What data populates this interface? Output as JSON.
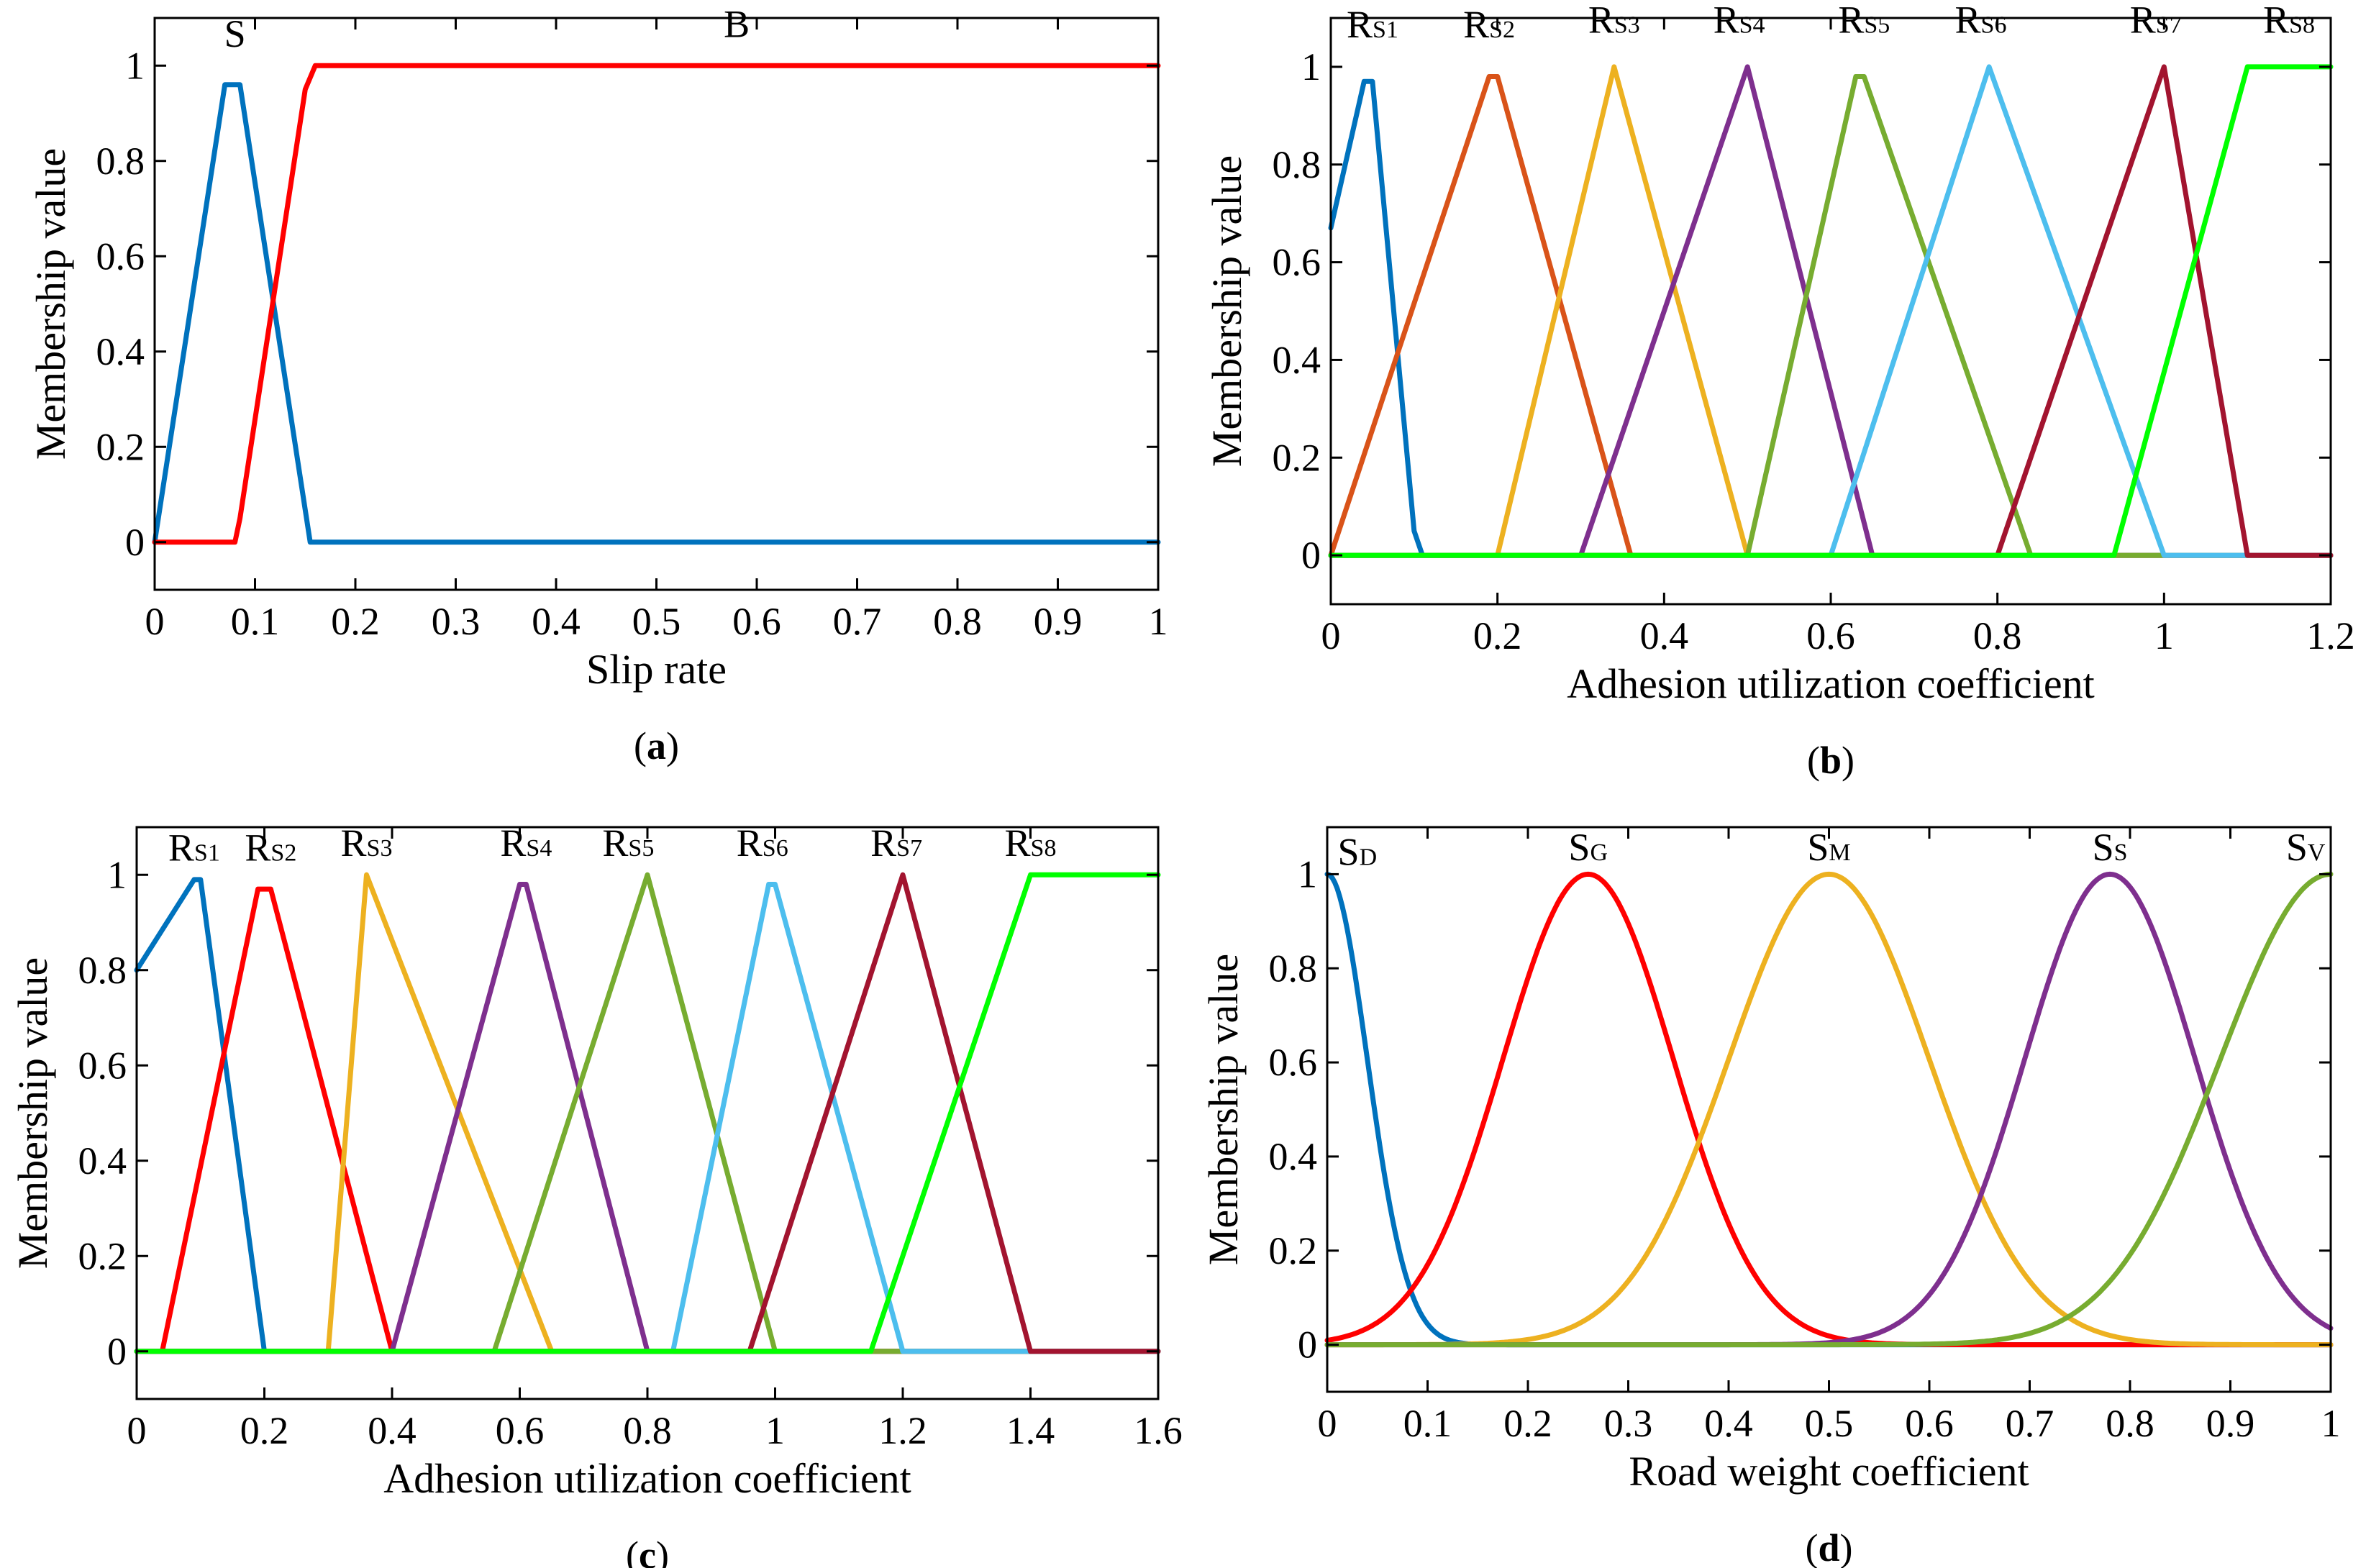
{
  "colors": {
    "blue": "#0072bd",
    "orange": "#d95319",
    "yellow": "#edb120",
    "purple": "#7e2f8e",
    "green": "#77ac30",
    "cyan": "#4dbeee",
    "maroon": "#a2142f",
    "red": "#ff0000",
    "lime": "#00ff00"
  },
  "chart_data": [
    {
      "id": "a",
      "type": "line",
      "title": "",
      "caption": {
        "open": "(",
        "letter": "a",
        "close": ")"
      },
      "xlabel": "Slip rate",
      "ylabel": "Membership value",
      "xlim": [
        0,
        1
      ],
      "ylim": [
        -0.1,
        1.1
      ],
      "xticks": [
        {
          "v": 0,
          "t": "0"
        },
        {
          "v": 0.1,
          "t": "0.1"
        },
        {
          "v": 0.2,
          "t": "0.2"
        },
        {
          "v": 0.3,
          "t": "0.3"
        },
        {
          "v": 0.4,
          "t": "0.4"
        },
        {
          "v": 0.5,
          "t": "0.5"
        },
        {
          "v": 0.6,
          "t": "0.6"
        },
        {
          "v": 0.7,
          "t": "0.7"
        },
        {
          "v": 0.8,
          "t": "0.8"
        },
        {
          "v": 0.9,
          "t": "0.9"
        },
        {
          "v": 1,
          "t": "1"
        }
      ],
      "yticks": [
        {
          "v": 0,
          "t": "0"
        },
        {
          "v": 0.2,
          "t": "0.2"
        },
        {
          "v": 0.4,
          "t": "0.4"
        },
        {
          "v": 0.6,
          "t": "0.6"
        },
        {
          "v": 0.8,
          "t": "0.8"
        },
        {
          "v": 1,
          "t": "1"
        }
      ],
      "series": [
        {
          "name": "S",
          "sub": "",
          "color": "blue",
          "x": [
            0,
            0.07,
            0.085,
            0.155,
            1
          ],
          "y": [
            0,
            0.96,
            0.96,
            0,
            0
          ],
          "label_at": [
            0.08,
            1.04
          ]
        },
        {
          "name": "B",
          "sub": "",
          "color": "red",
          "x": [
            0,
            0.08,
            0.085,
            0.15,
            0.16,
            1
          ],
          "y": [
            0,
            0,
            0.05,
            0.95,
            1,
            1
          ],
          "label_at": [
            0.58,
            1.06
          ]
        }
      ]
    },
    {
      "id": "b",
      "type": "line",
      "title": "",
      "caption": {
        "open": "(",
        "letter": "b",
        "close": ")"
      },
      "xlabel": "Adhesion utilization coefficient",
      "ylabel": "Membership value",
      "xlim": [
        0,
        1.2
      ],
      "ylim": [
        -0.1,
        1.1
      ],
      "xticks": [
        {
          "v": 0,
          "t": "0"
        },
        {
          "v": 0.2,
          "t": "0.2"
        },
        {
          "v": 0.4,
          "t": "0.4"
        },
        {
          "v": 0.6,
          "t": "0.6"
        },
        {
          "v": 0.8,
          "t": "0.8"
        },
        {
          "v": 1,
          "t": "1"
        },
        {
          "v": 1.2,
          "t": "1.2"
        }
      ],
      "yticks": [
        {
          "v": 0,
          "t": "0"
        },
        {
          "v": 0.2,
          "t": "0.2"
        },
        {
          "v": 0.4,
          "t": "0.4"
        },
        {
          "v": 0.6,
          "t": "0.6"
        },
        {
          "v": 0.8,
          "t": "0.8"
        },
        {
          "v": 1,
          "t": "1"
        }
      ],
      "series": [
        {
          "name": "R",
          "sub": "S1",
          "color": "blue",
          "x": [
            0,
            0.04,
            0.05,
            0.1,
            0.11,
            1.2
          ],
          "y": [
            0.67,
            0.97,
            0.97,
            0.05,
            0,
            0
          ],
          "label_at": [
            0.05,
            1.06
          ]
        },
        {
          "name": "R",
          "sub": "S2",
          "color": "orange",
          "x": [
            0,
            0.19,
            0.2,
            0.36,
            1.2
          ],
          "y": [
            0,
            0.98,
            0.98,
            0,
            0
          ],
          "label_at": [
            0.19,
            1.06
          ]
        },
        {
          "name": "R",
          "sub": "S3",
          "color": "yellow",
          "x": [
            0,
            0.2,
            0.34,
            0.5,
            1.2
          ],
          "y": [
            0,
            0,
            1,
            0,
            0
          ],
          "label_at": [
            0.34,
            1.07
          ]
        },
        {
          "name": "R",
          "sub": "S4",
          "color": "purple",
          "x": [
            0,
            0.3,
            0.5,
            0.65,
            1.2
          ],
          "y": [
            0,
            0,
            1,
            0,
            0
          ],
          "label_at": [
            0.49,
            1.07
          ]
        },
        {
          "name": "R",
          "sub": "S5",
          "color": "green",
          "x": [
            0,
            0.5,
            0.63,
            0.64,
            0.84,
            1.2
          ],
          "y": [
            0,
            0,
            0.98,
            0.98,
            0,
            0
          ],
          "label_at": [
            0.64,
            1.07
          ]
        },
        {
          "name": "R",
          "sub": "S6",
          "color": "cyan",
          "x": [
            0,
            0.6,
            0.79,
            1,
            1.2
          ],
          "y": [
            0,
            0,
            1,
            0,
            0
          ],
          "label_at": [
            0.78,
            1.07
          ]
        },
        {
          "name": "R",
          "sub": "S7",
          "color": "maroon",
          "x": [
            0,
            0.8,
            1,
            1.1,
            1.2
          ],
          "y": [
            0,
            0,
            1,
            0,
            0
          ],
          "label_at": [
            0.99,
            1.07
          ]
        },
        {
          "name": "R",
          "sub": "S8",
          "color": "lime",
          "x": [
            0,
            0.94,
            1.1,
            1.2
          ],
          "y": [
            0,
            0,
            1,
            1
          ],
          "label_at": [
            1.15,
            1.07
          ]
        }
      ]
    },
    {
      "id": "c",
      "type": "line",
      "title": "",
      "caption": {
        "open": "(",
        "letter": "c",
        "close": ")"
      },
      "xlabel": "Adhesion utilization coefficient",
      "ylabel": "Membership value",
      "xlim": [
        0,
        1.6
      ],
      "ylim": [
        -0.1,
        1.1
      ],
      "xticks": [
        {
          "v": 0,
          "t": "0"
        },
        {
          "v": 0.2,
          "t": "0.2"
        },
        {
          "v": 0.4,
          "t": "0.4"
        },
        {
          "v": 0.6,
          "t": "0.6"
        },
        {
          "v": 0.8,
          "t": "0.8"
        },
        {
          "v": 1,
          "t": "1"
        },
        {
          "v": 1.2,
          "t": "1.2"
        },
        {
          "v": 1.4,
          "t": "1.4"
        },
        {
          "v": 1.6,
          "t": "1.6"
        }
      ],
      "yticks": [
        {
          "v": 0,
          "t": "0"
        },
        {
          "v": 0.2,
          "t": "0.2"
        },
        {
          "v": 0.4,
          "t": "0.4"
        },
        {
          "v": 0.6,
          "t": "0.6"
        },
        {
          "v": 0.8,
          "t": "0.8"
        },
        {
          "v": 1,
          "t": "1"
        }
      ],
      "series": [
        {
          "name": "R",
          "sub": "S1",
          "color": "blue",
          "x": [
            0,
            0.09,
            0.1,
            0.2,
            1.6
          ],
          "y": [
            0.8,
            0.99,
            0.99,
            0,
            0
          ],
          "label_at": [
            0.09,
            1.03
          ]
        },
        {
          "name": "R",
          "sub": "S2",
          "color": "red",
          "x": [
            0,
            0.04,
            0.19,
            0.21,
            0.4,
            1.6
          ],
          "y": [
            0,
            0,
            0.97,
            0.97,
            0,
            0
          ],
          "label_at": [
            0.21,
            1.03
          ]
        },
        {
          "name": "R",
          "sub": "S3",
          "color": "yellow",
          "x": [
            0,
            0.3,
            0.36,
            0.65,
            1.6
          ],
          "y": [
            0,
            0,
            1,
            0,
            0
          ],
          "label_at": [
            0.36,
            1.04
          ]
        },
        {
          "name": "R",
          "sub": "S4",
          "color": "purple",
          "x": [
            0,
            0.4,
            0.6,
            0.61,
            0.8,
            1.6
          ],
          "y": [
            0,
            0,
            0.98,
            0.98,
            0,
            0
          ],
          "label_at": [
            0.61,
            1.04
          ]
        },
        {
          "name": "R",
          "sub": "S5",
          "color": "green",
          "x": [
            0,
            0.56,
            0.8,
            1,
            1.6
          ],
          "y": [
            0,
            0,
            1,
            0,
            0
          ],
          "label_at": [
            0.77,
            1.04
          ]
        },
        {
          "name": "R",
          "sub": "S6",
          "color": "cyan",
          "x": [
            0,
            0.84,
            0.99,
            1,
            1.2,
            1.6
          ],
          "y": [
            0,
            0,
            0.98,
            0.98,
            0,
            0
          ],
          "label_at": [
            0.98,
            1.04
          ]
        },
        {
          "name": "R",
          "sub": "S7",
          "color": "maroon",
          "x": [
            0,
            0.96,
            1.2,
            1.4,
            1.6
          ],
          "y": [
            0,
            0,
            1,
            0,
            0
          ],
          "label_at": [
            1.19,
            1.04
          ]
        },
        {
          "name": "R",
          "sub": "S8",
          "color": "lime",
          "x": [
            0,
            1.15,
            1.4,
            1.6
          ],
          "y": [
            0,
            0,
            1,
            1
          ],
          "label_at": [
            1.4,
            1.04
          ]
        }
      ]
    },
    {
      "id": "d",
      "type": "line",
      "title": "",
      "caption": {
        "open": "(",
        "letter": "d",
        "close": ")"
      },
      "xlabel": "Road weight coefficient",
      "ylabel": "Membership value",
      "xlim": [
        0,
        1
      ],
      "ylim": [
        -0.1,
        1.1
      ],
      "xticks": [
        {
          "v": 0,
          "t": "0"
        },
        {
          "v": 0.1,
          "t": "0.1"
        },
        {
          "v": 0.2,
          "t": "0.2"
        },
        {
          "v": 0.3,
          "t": "0.3"
        },
        {
          "v": 0.4,
          "t": "0.4"
        },
        {
          "v": 0.5,
          "t": "0.5"
        },
        {
          "v": 0.6,
          "t": "0.6"
        },
        {
          "v": 0.7,
          "t": "0.7"
        },
        {
          "v": 0.8,
          "t": "0.8"
        },
        {
          "v": 0.9,
          "t": "0.9"
        },
        {
          "v": 1,
          "t": "1"
        }
      ],
      "yticks": [
        {
          "v": 0,
          "t": "0"
        },
        {
          "v": 0.2,
          "t": "0.2"
        },
        {
          "v": 0.4,
          "t": "0.4"
        },
        {
          "v": 0.6,
          "t": "0.6"
        },
        {
          "v": 0.8,
          "t": "0.8"
        },
        {
          "v": 1,
          "t": "1"
        }
      ],
      "series": [
        {
          "name": "S",
          "sub": "D",
          "color": "blue",
          "gauss": {
            "mu": 0,
            "sigma": 0.04
          },
          "label_at": [
            0.03,
            1.02
          ]
        },
        {
          "name": "S",
          "sub": "G",
          "color": "red",
          "gauss": {
            "mu": 0.26,
            "sigma": 0.085
          },
          "label_at": [
            0.26,
            1.03
          ]
        },
        {
          "name": "S",
          "sub": "M",
          "color": "yellow",
          "gauss": {
            "mu": 0.5,
            "sigma": 0.1
          },
          "label_at": [
            0.5,
            1.03
          ]
        },
        {
          "name": "S",
          "sub": "S",
          "color": "purple",
          "gauss": {
            "mu": 0.78,
            "sigma": 0.085
          },
          "label_at": [
            0.78,
            1.03
          ]
        },
        {
          "name": "S",
          "sub": "V",
          "color": "green",
          "gauss": {
            "mu": 1,
            "sigma": 0.11
          },
          "label_at": [
            0.975,
            1.03
          ]
        }
      ]
    }
  ]
}
